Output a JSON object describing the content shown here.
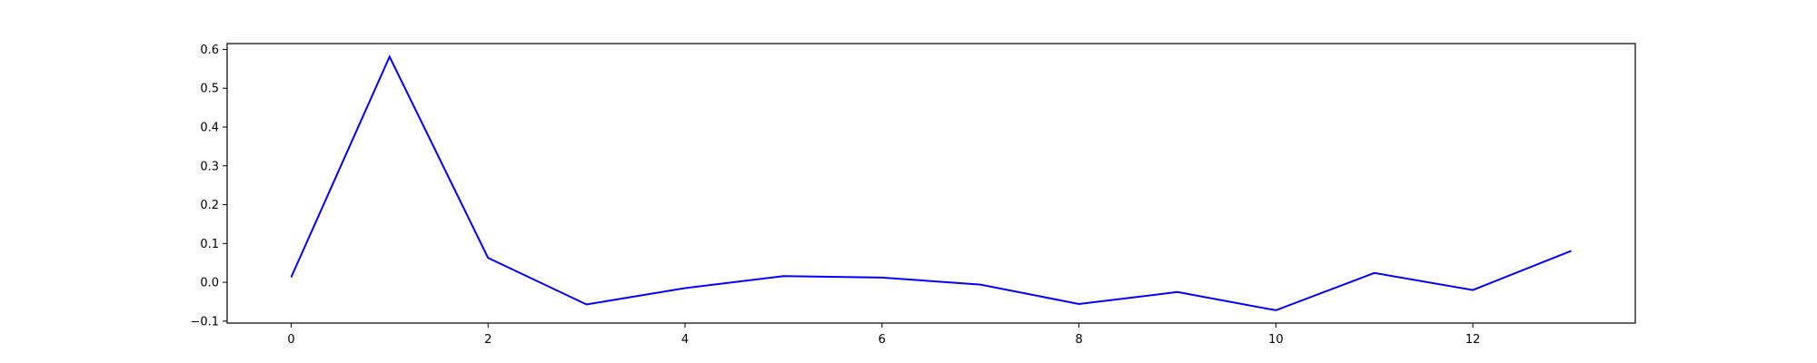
{
  "chart_data": {
    "type": "line",
    "title": "",
    "xlabel": "",
    "ylabel": "",
    "x": [
      0,
      1,
      2,
      3,
      4,
      5,
      6,
      7,
      8,
      9,
      10,
      11,
      12,
      13
    ],
    "series": [
      {
        "values": [
          0.013,
          0.581,
          0.063,
          -0.057,
          -0.015,
          0.016,
          0.012,
          -0.006,
          -0.056,
          -0.025,
          -0.072,
          0.024,
          -0.02,
          0.081
        ],
        "color": "#0000ff"
      }
    ],
    "xlim": [
      -0.65,
      13.65
    ],
    "ylim": [
      -0.105,
      0.615
    ],
    "xticks": [
      0,
      2,
      4,
      6,
      8,
      10,
      12
    ],
    "xtick_labels": [
      "0",
      "2",
      "4",
      "6",
      "8",
      "10",
      "12"
    ],
    "yticks": [
      -0.1,
      0.0,
      0.1,
      0.2,
      0.3,
      0.4,
      0.5,
      0.6
    ],
    "ytick_labels": [
      "−0.1",
      "0.0",
      "0.1",
      "0.2",
      "0.3",
      "0.4",
      "0.5",
      "0.6"
    ],
    "grid": false,
    "legend": "none"
  }
}
